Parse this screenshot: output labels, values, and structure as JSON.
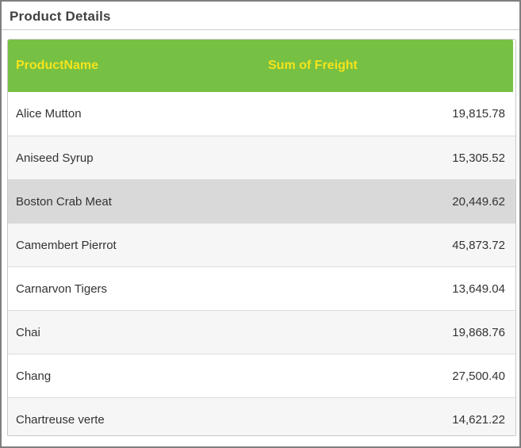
{
  "window": {
    "title": "Product Details"
  },
  "colors": {
    "window_border": "#7f7f7f",
    "header_bg": "#76c043",
    "header_text": "#f4e41c",
    "alt_row_bg": "#f6f6f6",
    "selected_row_bg": "#d9d9d9",
    "row_text": "#333333",
    "row_border": "#dcdcdc"
  },
  "grid": {
    "columns": [
      {
        "label": "ProductName"
      },
      {
        "label": "Sum of Freight"
      }
    ],
    "rows": [
      {
        "product": "Alice Mutton",
        "freight": "19,815.78",
        "selected": false
      },
      {
        "product": "Aniseed Syrup",
        "freight": "15,305.52",
        "selected": false
      },
      {
        "product": "Boston Crab Meat",
        "freight": "20,449.62",
        "selected": true
      },
      {
        "product": "Camembert Pierrot",
        "freight": "45,873.72",
        "selected": false
      },
      {
        "product": "Carnarvon Tigers",
        "freight": "13,649.04",
        "selected": false
      },
      {
        "product": "Chai",
        "freight": "19,868.76",
        "selected": false
      },
      {
        "product": "Chang",
        "freight": "27,500.40",
        "selected": false
      },
      {
        "product": "Chartreuse verte",
        "freight": "14,621.22",
        "selected": false
      }
    ]
  }
}
